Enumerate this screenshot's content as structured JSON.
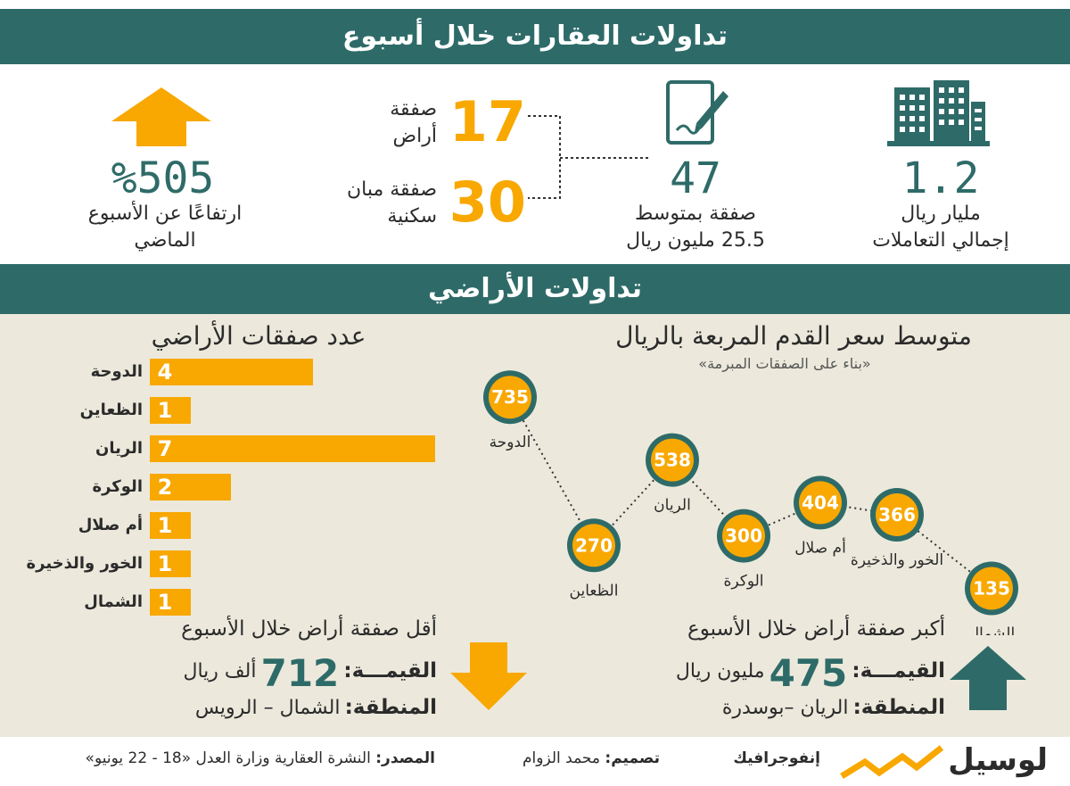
{
  "header": {
    "title": "تداولات العقارات خلال أسبوع"
  },
  "stats": {
    "total": {
      "value": "1.2",
      "line1": "مليار ريال",
      "line2": "إجمالي التعاملات",
      "icon": "buildings-icon"
    },
    "deals": {
      "value": "47",
      "line1": "صفقة بمتوسط",
      "line2": "25.5 مليون ريال",
      "icon": "contract-pen-icon"
    },
    "land": {
      "value": "17",
      "line1": "صفقة",
      "line2": "أراض"
    },
    "residential": {
      "value": "30",
      "line1": "صفقة مبان",
      "line2": "سكنية"
    },
    "change": {
      "value": "%505",
      "line1": "ارتفاعًا عن الأسبوع",
      "line2": "الماضي",
      "icon": "arrow-up-icon"
    }
  },
  "section2": {
    "title": "تداولات الأراضي"
  },
  "colors": {
    "teal": "#2e6b68",
    "orange": "#f8a800",
    "background": "#ece9dc"
  },
  "chart_data": [
    {
      "type": "bar",
      "orientation": "horizontal",
      "title": "عدد صفقات الأراضي",
      "categories": [
        "الدوحة",
        "الظعاين",
        "الريان",
        "الوكرة",
        "أم صلال",
        "الخور والذخيرة",
        "الشمال"
      ],
      "values": [
        4,
        1,
        7,
        2,
        1,
        1,
        1
      ],
      "xlim": [
        0,
        7
      ]
    },
    {
      "type": "line",
      "title": "متوسط سعر القدم المربعة بالريال",
      "subtitle": "«بناء على الصفقات المبرمة»",
      "categories": [
        "الدوحة",
        "الظعاين",
        "الريان",
        "الوكرة",
        "أم صلال",
        "الخور والذخيرة",
        "الشمال"
      ],
      "values": [
        735,
        270,
        538,
        300,
        404,
        366,
        135
      ],
      "ylim": [
        100,
        800
      ]
    }
  ],
  "min_deal": {
    "title": "أقل صفقة أراض خلال الأسبوع",
    "value_label": "القيمـــة:",
    "value": "712",
    "unit": "ألف ريال",
    "region_label": "المنطقة:",
    "region": "الشمال – الرويس",
    "icon": "arrow-down-icon"
  },
  "max_deal": {
    "title": "أكبر صفقة أراض خلال الأسبوع",
    "value_label": "القيمـــة:",
    "value": "475",
    "unit": "مليون ريال",
    "region_label": "المنطقة:",
    "region": "الريان –بوسدرة",
    "icon": "arrow-up-icon"
  },
  "footer": {
    "source_label": "المصدر:",
    "source": "النشرة العقارية وزارة العدل «18 - 22 يونيو»",
    "design_label": "تصميم:",
    "design": "محمد الزوام",
    "infographic": "إنفوجرافيك",
    "logo": "لوسيل"
  }
}
